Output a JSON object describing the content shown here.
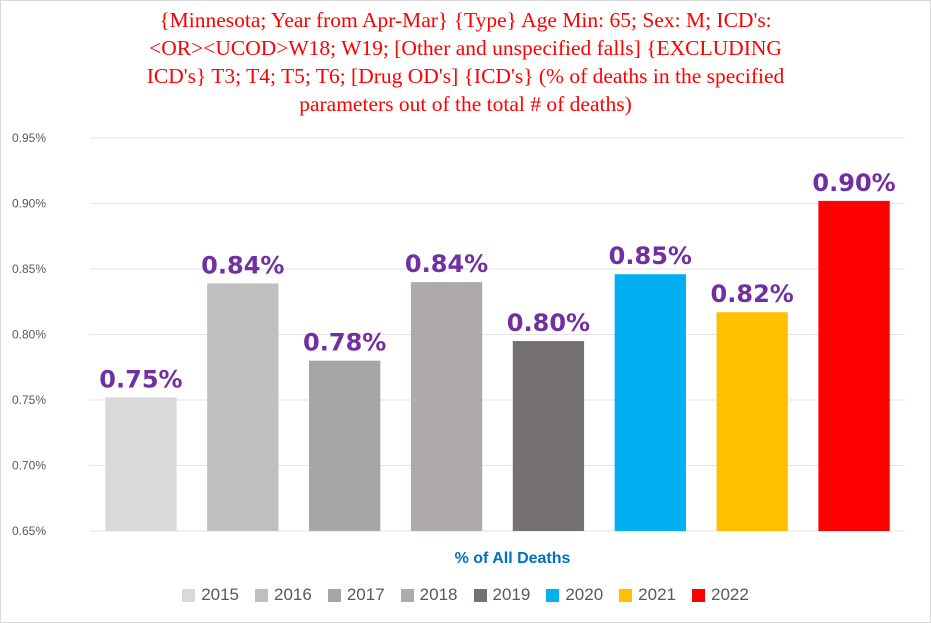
{
  "chart_data": {
    "type": "bar",
    "title_lines": [
      "{Minnesota; Year from Apr-Mar}  {Type} Age Min: 65; Sex: M; ICD's:",
      "<OR><UCOD>W18; W19;  [Other and unspecified falls]  {EXCLUDING",
      "ICD's} T3; T4; T5; T6; [Drug OD's]  {ICD's} (% of deaths in the specified",
      "parameters out of the total # of deaths)"
    ],
    "xlabel": "% of All Deaths",
    "ylabel": "",
    "ylim": [
      0.65,
      0.95
    ],
    "yticks": [
      0.65,
      0.7,
      0.75,
      0.8,
      0.85,
      0.9,
      0.95
    ],
    "ytick_labels": [
      "0.65%",
      "0.70%",
      "0.75%",
      "0.80%",
      "0.85%",
      "0.90%",
      "0.95%"
    ],
    "legend_position": "bottom",
    "series": [
      {
        "name": "2015",
        "value": 0.752,
        "label": "0.75%",
        "color": "#d9d9d9"
      },
      {
        "name": "2016",
        "value": 0.839,
        "label": "0.84%",
        "color": "#bfbfbf"
      },
      {
        "name": "2017",
        "value": 0.78,
        "label": "0.78%",
        "color": "#a6a6a6"
      },
      {
        "name": "2018",
        "value": 0.84,
        "label": "0.84%",
        "color": "#aeaaaa"
      },
      {
        "name": "2019",
        "value": 0.795,
        "label": "0.80%",
        "color": "#767171"
      },
      {
        "name": "2020",
        "value": 0.846,
        "label": "0.85%",
        "color": "#00b0f0"
      },
      {
        "name": "2021",
        "value": 0.817,
        "label": "0.82%",
        "color": "#ffc000"
      },
      {
        "name": "2022",
        "value": 0.902,
        "label": "0.90%",
        "color": "#ff0000"
      }
    ]
  }
}
